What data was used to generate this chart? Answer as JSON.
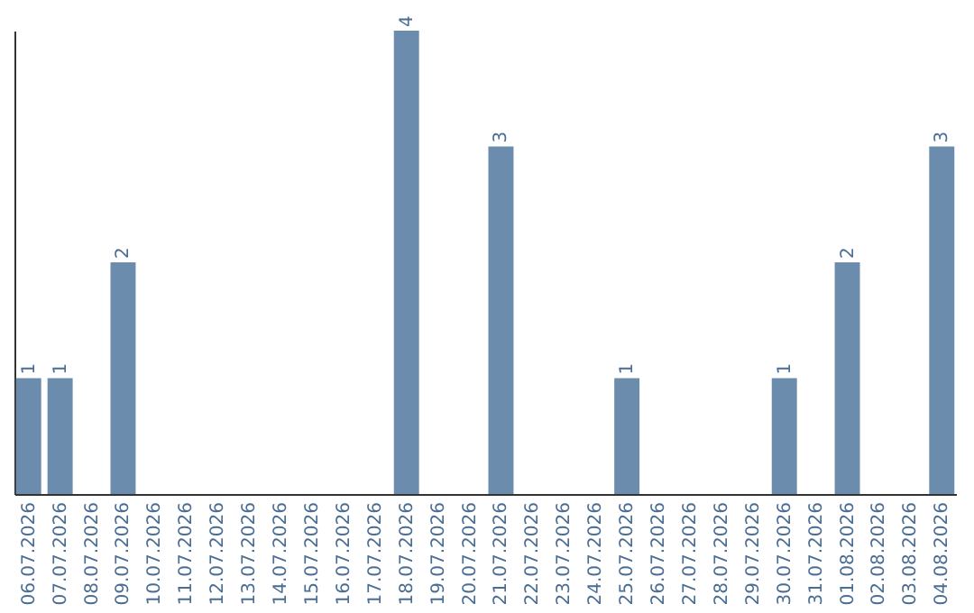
{
  "chart_data": {
    "type": "bar",
    "categories": [
      "06.07.2026",
      "07.07.2026",
      "08.07.2026",
      "09.07.2026",
      "10.07.2026",
      "11.07.2026",
      "12.07.2026",
      "13.07.2026",
      "14.07.2026",
      "15.07.2026",
      "16.07.2026",
      "17.07.2026",
      "18.07.2026",
      "19.07.2026",
      "20.07.2026",
      "21.07.2026",
      "22.07.2026",
      "23.07.2026",
      "24.07.2026",
      "25.07.2026",
      "26.07.2026",
      "27.07.2026",
      "28.07.2026",
      "29.07.2026",
      "30.07.2026",
      "31.07.2026",
      "01.08.2026",
      "02.08.2026",
      "03.08.2026",
      "04.08.2026"
    ],
    "values": [
      1,
      1,
      0,
      2,
      0,
      0,
      0,
      0,
      0,
      0,
      0,
      0,
      4,
      0,
      0,
      3,
      0,
      0,
      0,
      1,
      0,
      0,
      0,
      0,
      1,
      0,
      2,
      0,
      0,
      3
    ],
    "value_labels": [
      "1",
      "1",
      null,
      "2",
      null,
      null,
      null,
      null,
      null,
      null,
      null,
      null,
      "4",
      null,
      null,
      "3",
      null,
      null,
      null,
      "1",
      null,
      null,
      null,
      null,
      "1",
      null,
      "2",
      null,
      null,
      "3"
    ],
    "color": "#6b8cac",
    "tick_labels": "x",
    "grid": false
  }
}
